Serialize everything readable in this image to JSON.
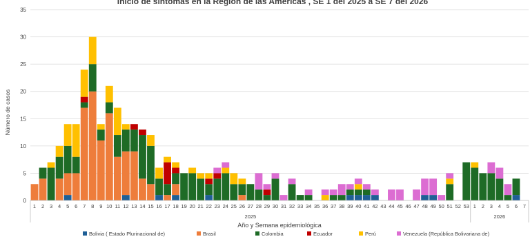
{
  "chart_data": {
    "type": "bar",
    "stacked": true,
    "title": "Inicio de síntomas en la Región de las Américas , SE 1 del 2025 a SE 7 del 2026",
    "xlabel": "Año y Semana epidemiológica",
    "ylabel": "Número de casos",
    "ylim": [
      0,
      35
    ],
    "yticks": [
      0,
      5,
      10,
      15,
      20,
      25,
      30,
      35
    ],
    "grid": true,
    "legend_position": "bottom",
    "groups": [
      {
        "label": "2025",
        "weeks": [
          "1",
          "2",
          "3",
          "4",
          "5",
          "6",
          "7",
          "8",
          "9",
          "10",
          "11",
          "12",
          "13",
          "14",
          "15",
          "16",
          "17",
          "18",
          "19",
          "20",
          "21",
          "22",
          "23",
          "24",
          "25",
          "26",
          "27",
          "28",
          "29",
          "30",
          "31",
          "32",
          "33",
          "34",
          "35",
          "36",
          "37",
          "38",
          "39",
          "40",
          "41",
          "42",
          "43",
          "44",
          "45",
          "46",
          "47",
          "48",
          "49",
          "50",
          "51",
          "52",
          "53"
        ]
      },
      {
        "label": "2026",
        "weeks": [
          "1",
          "2",
          "3",
          "4",
          "5",
          "6",
          "7"
        ]
      }
    ],
    "series": [
      {
        "name": "Bolivia ( Estado Plurinacional de)",
        "color": "#1f5f96",
        "values": [
          0,
          0,
          0,
          0,
          1,
          0,
          0,
          0,
          0,
          0,
          0,
          1,
          0,
          0,
          0,
          1,
          0,
          1,
          0,
          0,
          0,
          1,
          0,
          0,
          0,
          0,
          0,
          0,
          0,
          0,
          0,
          0,
          0,
          0,
          0,
          0,
          0,
          0,
          1,
          1,
          1,
          1,
          0,
          0,
          0,
          0,
          0,
          1,
          1,
          0,
          0,
          0,
          0,
          0,
          0,
          0,
          0,
          0,
          1,
          0
        ]
      },
      {
        "name": "Brasil",
        "color": "#ee7d3b",
        "values": [
          3,
          4,
          0,
          4,
          4,
          5,
          17,
          20,
          11,
          16,
          8,
          8,
          9,
          4,
          3,
          0,
          1,
          2,
          0,
          0,
          0,
          0,
          0,
          0,
          0,
          1,
          0,
          0,
          0,
          0,
          0,
          0,
          0,
          0,
          0,
          0,
          0,
          0,
          0,
          0,
          0,
          0,
          0,
          0,
          0,
          0,
          0,
          0,
          0,
          0,
          0,
          0,
          0,
          0,
          0,
          0,
          0,
          0,
          0,
          0
        ]
      },
      {
        "name": "Colombia",
        "color": "#1e6b26",
        "values": [
          0,
          2,
          6,
          4,
          5,
          3,
          1,
          5,
          2,
          2,
          4,
          4,
          4,
          8,
          7,
          3,
          2,
          2,
          5,
          5,
          4,
          2,
          4,
          5,
          3,
          2,
          3,
          2,
          1,
          4,
          0,
          3,
          1,
          1,
          0,
          0,
          1,
          1,
          1,
          1,
          1,
          0,
          0,
          0,
          0,
          0,
          0,
          0,
          0,
          0,
          3,
          0,
          7,
          6,
          5,
          5,
          4,
          1,
          3,
          0
        ]
      },
      {
        "name": "Ecuador",
        "color": "#c00000",
        "values": [
          0,
          0,
          0,
          0,
          0,
          0,
          1,
          0,
          0,
          0,
          0,
          0,
          1,
          1,
          0,
          0,
          4,
          1,
          0,
          0,
          0,
          1,
          1,
          0,
          0,
          0,
          0,
          0,
          1,
          0,
          0,
          0,
          0,
          0,
          0,
          0,
          0,
          0,
          0,
          0,
          0,
          0,
          0,
          0,
          0,
          0,
          0,
          0,
          0,
          0,
          0,
          0,
          0,
          0,
          0,
          0,
          0,
          0,
          0,
          0
        ]
      },
      {
        "name": "Perú",
        "color": "#ffc000",
        "values": [
          0,
          0,
          1,
          2,
          4,
          6,
          5,
          5,
          1,
          3,
          5,
          1,
          0,
          0,
          2,
          2,
          1,
          1,
          0,
          1,
          1,
          1,
          0,
          1,
          2,
          1,
          0,
          0,
          0,
          0,
          0,
          0,
          0,
          0,
          0,
          1,
          0,
          0,
          0,
          1,
          0,
          0,
          0,
          0,
          0,
          0,
          0,
          0,
          0,
          0,
          1,
          0,
          0,
          1,
          0,
          0,
          0,
          0,
          0,
          0
        ]
      },
      {
        "name": "Venezuela (República Bolivariana de)",
        "color": "#dc6dd2",
        "values": [
          0,
          0,
          0,
          0,
          0,
          0,
          0,
          0,
          0,
          0,
          0,
          0,
          0,
          0,
          0,
          0,
          0,
          0,
          0,
          0,
          0,
          0,
          1,
          1,
          0,
          0,
          0,
          3,
          1,
          1,
          1,
          1,
          0,
          1,
          0,
          1,
          1,
          2,
          1,
          1,
          1,
          1,
          0,
          2,
          2,
          0,
          2,
          3,
          3,
          1,
          1,
          0,
          0,
          0,
          0,
          2,
          2,
          2,
          0,
          0
        ]
      }
    ]
  }
}
